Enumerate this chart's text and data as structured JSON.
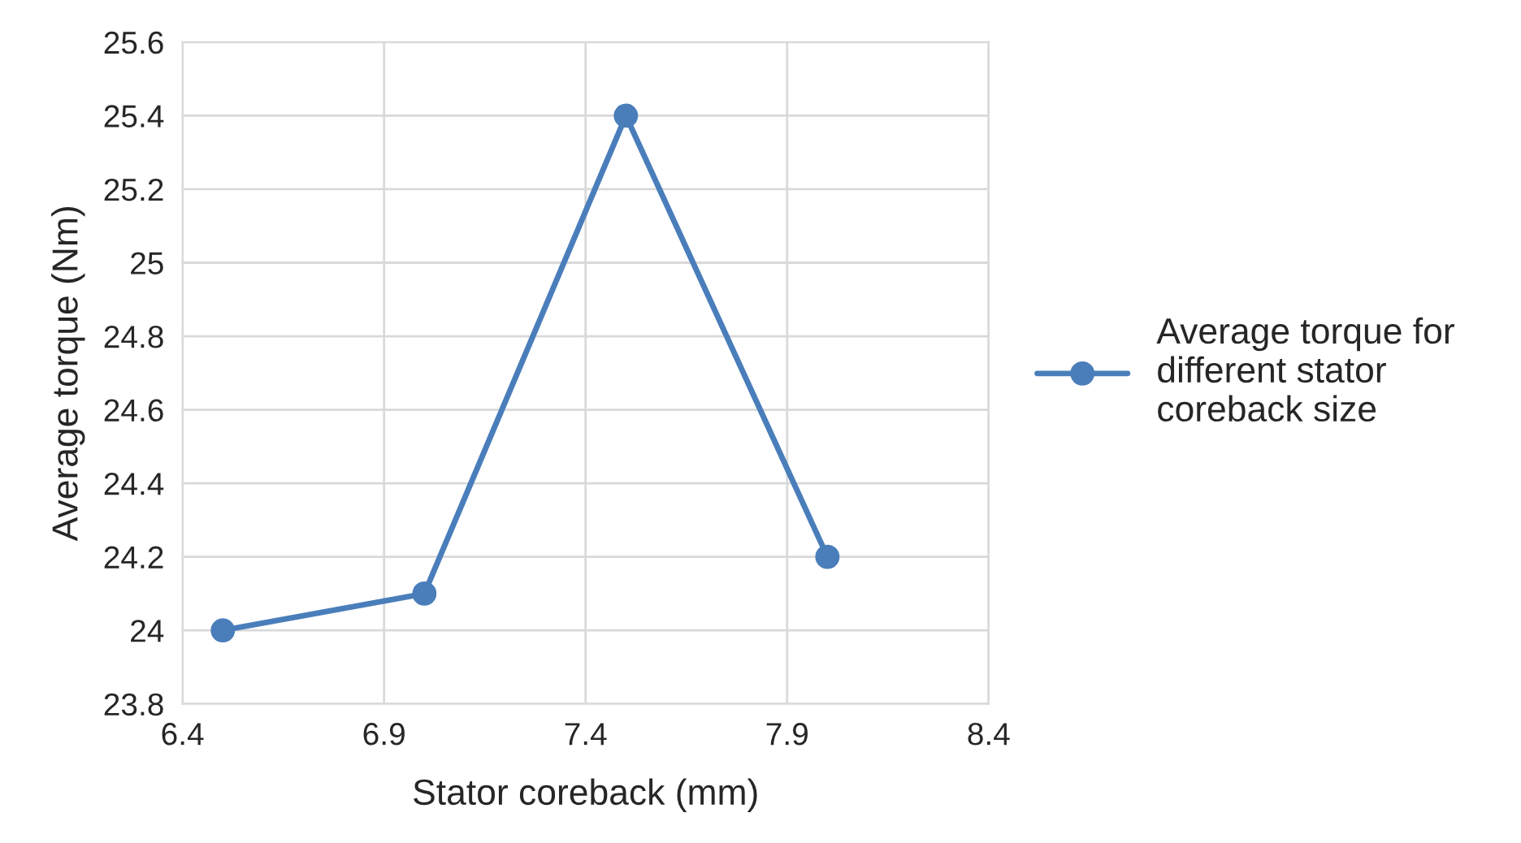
{
  "chart_data": {
    "type": "line",
    "xlabel": "Stator coreback (mm)",
    "ylabel": "Average torque (Nm)",
    "x": [
      6.5,
      7.0,
      7.5,
      8.0
    ],
    "series": [
      {
        "name": "Average torque for different stator coreback size",
        "color": "#4a7ebb",
        "values": [
          24.0,
          24.1,
          25.4,
          24.2
        ]
      }
    ],
    "xlim": [
      6.4,
      8.4
    ],
    "xticks": [
      6.4,
      6.9,
      7.4,
      7.9,
      8.4
    ],
    "ylim": [
      23.8,
      25.6
    ],
    "yticks": [
      23.8,
      24,
      24.2,
      24.4,
      24.6,
      24.8,
      25,
      25.2,
      25.4,
      25.6
    ],
    "grid": true,
    "legend": "right",
    "marker": "circle",
    "line_style": "solid"
  }
}
